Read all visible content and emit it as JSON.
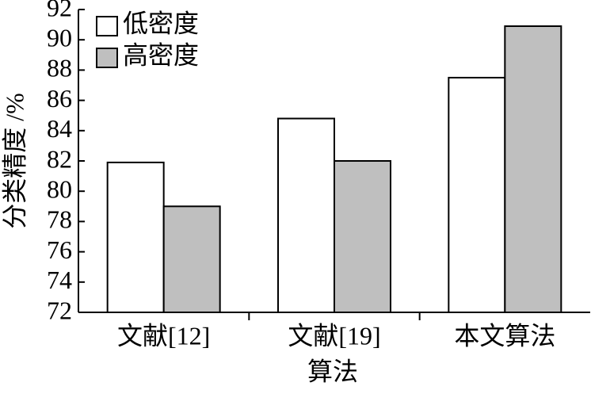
{
  "chart_data": {
    "type": "bar",
    "categories": [
      "文献[12]",
      "文献[19]",
      "本文算法"
    ],
    "series": [
      {
        "name": "低密度",
        "color": "#ffffff",
        "values": [
          81.9,
          84.8,
          87.5
        ]
      },
      {
        "name": "高密度",
        "color": "#bfbfbf",
        "values": [
          79.0,
          82.0,
          90.9
        ]
      }
    ],
    "ylim": [
      72,
      92
    ],
    "yticks": [
      72,
      74,
      76,
      78,
      80,
      82,
      84,
      86,
      88,
      90,
      92
    ],
    "ylabel": "分类精度 /%",
    "xlabel": "算法",
    "grid": false,
    "legend": "top-left"
  }
}
